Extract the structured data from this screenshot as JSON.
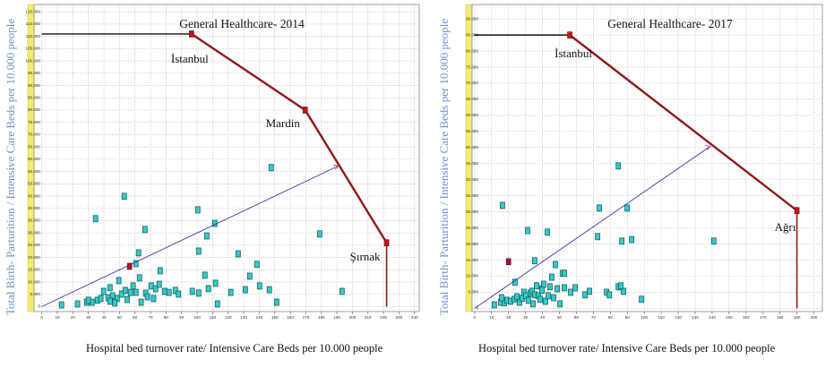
{
  "chart_data": [
    {
      "type": "scatter",
      "title": "General Healthcare- 2014",
      "x_label": "Hospital bed turnover rate/ Intensive Care Beds per 10.000 people",
      "y_label": "Total Birth- Parturition / Intensive Care Beds per 10.000 people",
      "xlim": [
        -5,
        243
      ],
      "ylim": [
        -2000,
        123000
      ],
      "xticks": [
        0,
        10,
        20,
        30,
        40,
        50,
        60,
        70,
        80,
        90,
        100,
        110,
        120,
        130,
        140,
        150,
        160,
        170,
        180,
        190,
        200,
        210,
        220,
        230,
        240
      ],
      "yticks": [
        0,
        {
          "value": 5000,
          "label": "5.000"
        },
        {
          "value": 10000,
          "label": "10.000"
        },
        {
          "value": 15000,
          "label": "15.000"
        },
        {
          "value": 20000,
          "label": "20.000"
        },
        {
          "value": 25000,
          "label": "25.000"
        },
        {
          "value": 30000,
          "label": "30.000"
        },
        {
          "value": 35000,
          "label": "35.000"
        },
        {
          "value": 40000,
          "label": "40.000"
        },
        {
          "value": 45000,
          "label": "45.000"
        },
        {
          "value": 50000,
          "label": "50.000"
        },
        {
          "value": 55000,
          "label": "55.000"
        },
        {
          "value": 60000,
          "label": "60.000"
        },
        {
          "value": 65000,
          "label": "65.000"
        },
        {
          "value": 70000,
          "label": "70.000"
        },
        {
          "value": 75000,
          "label": "75.000"
        },
        {
          "value": 80000,
          "label": "80.000"
        },
        {
          "value": 85000,
          "label": "85.000"
        },
        {
          "value": 90000,
          "label": "90.000"
        },
        {
          "value": 95000,
          "label": "95.000"
        },
        {
          "value": 100000,
          "label": "100.000"
        },
        {
          "value": 105000,
          "label": "105.000"
        },
        {
          "value": 110000,
          "label": "110.000"
        },
        {
          "value": 115000,
          "label": "115.000"
        },
        {
          "value": 120000,
          "label": "120.000"
        }
      ],
      "grid": true,
      "point_color": "#33cccc",
      "frontier_color": "#8b1a1a",
      "projection_color": "#3838b0",
      "x": [
        12.7,
        23,
        28.9,
        32.3,
        35.8,
        39.8,
        42.7,
        45.6,
        48.5,
        51.4,
        53.7,
        57.1,
        58.8,
        60.6,
        62.9,
        64,
        66.9,
        70.4,
        73.3,
        76.2,
        79.1,
        81.9,
        86,
        96.9,
        101,
        107.3,
        111.9,
        113.1,
        121.7,
        131,
        133.9,
        140.2,
        146.5,
        34.6,
        53.1,
        66.4,
        100.4,
        101,
        105,
        106.2,
        111.4,
        126.4,
        138.5,
        147.7,
        151.2,
        178.9,
        193.3,
        62.3,
        49.6,
        43.9,
        75.6,
        60.6,
        30,
        38,
        44,
        47,
        55,
        68,
        88,
        72
      ],
      "y": [
        700,
        1100,
        1800,
        1800,
        2600,
        6200,
        3600,
        4400,
        3300,
        5100,
        6600,
        5800,
        8400,
        5800,
        11700,
        1800,
        5500,
        8400,
        7300,
        14600,
        6200,
        5800,
        6600,
        6200,
        5500,
        7300,
        9500,
        1100,
        5800,
        6900,
        12400,
        8400,
        6900,
        35800,
        44900,
        31400,
        39400,
        22600,
        12800,
        28800,
        33900,
        21500,
        17200,
        56600,
        1800,
        29600,
        6200,
        21900,
        10600,
        7700,
        9100,
        17500,
        2600,
        3300,
        2200,
        1500,
        2900,
        4000,
        5100,
        3300
      ],
      "frontier": {
        "x": [
          96.4,
          169.6,
          222
        ],
        "y": [
          111000,
          80000,
          26000
        ],
        "labels": [
          "İstanbul",
          "Mardin",
          "Şırnak"
        ]
      },
      "projection": {
        "x": [
          0,
          191
        ],
        "y": [
          0,
          57300
        ]
      },
      "reference_point": {
        "x": 56.5,
        "y": 16400
      }
    },
    {
      "type": "scatter",
      "title": "General Healthcare- 2017",
      "x_label": "Hospital bed turnover rate/ Intensive Care Beds per 10.000 people",
      "y_label": "Total Birth- Parturition / Intensive Care Beds per 10.000 people",
      "xlim": [
        -1.5,
        205
      ],
      "ylim": [
        -1000,
        94500
      ],
      "xticks": [
        0,
        10,
        20,
        30,
        40,
        50,
        60,
        70,
        80,
        90,
        100,
        110,
        120,
        130,
        140,
        150,
        160,
        170,
        180,
        190,
        200
      ],
      "yticks": [
        0,
        {
          "value": 5000,
          "label": "5.000"
        },
        {
          "value": 10000,
          "label": "10.000"
        },
        {
          "value": 15000,
          "label": "15.000"
        },
        {
          "value": 20000,
          "label": "20.000"
        },
        {
          "value": 25000,
          "label": "25.000"
        },
        {
          "value": 30000,
          "label": "30.000"
        },
        {
          "value": 35000,
          "label": "35.000"
        },
        {
          "value": 40000,
          "label": "40.000"
        },
        {
          "value": 45000,
          "label": "45.000"
        },
        {
          "value": 50000,
          "label": "50.000"
        },
        {
          "value": 55000,
          "label": "55.000"
        },
        {
          "value": 60000,
          "label": "60.000"
        },
        {
          "value": 65000,
          "label": "65.000"
        },
        {
          "value": 70000,
          "label": "70.000"
        },
        {
          "value": 75000,
          "label": "75.000"
        },
        {
          "value": 80000,
          "label": "80.000"
        },
        {
          "value": 85000,
          "label": "85.000"
        },
        {
          "value": 90000,
          "label": "90.000"
        }
      ],
      "grid": true,
      "point_color": "#33cccc",
      "frontier_color": "#8b1a1a",
      "projection_color": "#3838b0",
      "x": [
        11.6,
        15.3,
        17.5,
        19,
        21.2,
        23.3,
        24.9,
        26.5,
        28,
        29.1,
        30.2,
        31.7,
        32.8,
        33.9,
        35.4,
        36.5,
        37.6,
        38.6,
        39.7,
        40.7,
        41.8,
        43.4,
        44.4,
        45.5,
        47.6,
        48.7,
        50.3,
        51.9,
        52.9,
        56.6,
        59.3,
        65.1,
        67.7,
        77.8,
        79.4,
        84.7,
        86.8,
        87.8,
        98.4,
        16.4,
        31.2,
        35.4,
        39.7,
        42.9,
        72.5,
        73.5,
        84.7,
        86.2,
        89.9,
        92.6,
        141,
        23.8,
        15.9,
        34.4,
        46.6,
        52.9
      ],
      "y": [
        1100,
        1900,
        1700,
        2500,
        2200,
        2800,
        3600,
        1900,
        3100,
        5000,
        3900,
        2500,
        4700,
        5300,
        4200,
        7000,
        3900,
        2800,
        6100,
        7500,
        2200,
        3900,
        6700,
        9700,
        13600,
        6100,
        1400,
        10900,
        10900,
        5000,
        6400,
        4200,
        5300,
        5000,
        4200,
        6700,
        20900,
        5300,
        2800,
        32000,
        24200,
        14800,
        5600,
        23700,
        22300,
        31200,
        44300,
        7000,
        31200,
        21400,
        20900,
        8100,
        3300,
        1400,
        3300,
        6400
      ],
      "frontier": {
        "x": [
          56.1,
          190
        ],
        "y": [
          85000,
          30400
        ],
        "labels": [
          "İstanbul",
          "Ağrı"
        ]
      },
      "projection": {
        "x": [
          0,
          139
        ],
        "y": [
          0,
          50400
        ]
      },
      "reference_point": {
        "x": 20,
        "y": 14500
      }
    }
  ]
}
